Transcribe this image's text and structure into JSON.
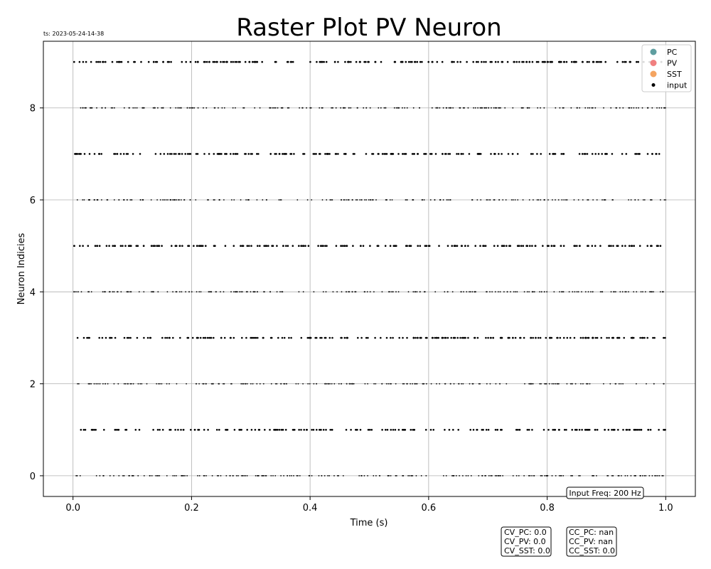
{
  "chart_data": {
    "type": "scatter",
    "title": "Raster Plot PV Neuron",
    "timestamp": "ts: 2023-05-24-14-38",
    "xlabel": "Time (s)",
    "ylabel": "Neuron Indicies",
    "xlim": [
      -0.05,
      1.05
    ],
    "ylim": [
      -0.45,
      9.45
    ],
    "x_ticks": [
      0.0,
      0.2,
      0.4,
      0.6,
      0.8,
      1.0
    ],
    "x_tick_labels": [
      "0.0",
      "0.2",
      "0.4",
      "0.6",
      "0.8",
      "1.0"
    ],
    "y_ticks": [
      0,
      2,
      4,
      6,
      8
    ],
    "y_tick_labels": [
      "0",
      "2",
      "4",
      "6",
      "8"
    ],
    "grid": true,
    "legend_position": "top-right",
    "legend": [
      {
        "name": "PC",
        "color": "#5f9ea0",
        "marker": "circle"
      },
      {
        "name": "PV",
        "color": "#f08080",
        "marker": "circle"
      },
      {
        "name": "SST",
        "color": "#f4a460",
        "marker": "circle"
      },
      {
        "name": "input",
        "color": "#000000",
        "marker": "dot"
      }
    ],
    "series": [
      {
        "name": "input",
        "color": "#000000",
        "neuron_indices": [
          0,
          1,
          2,
          3,
          4,
          5,
          6,
          7,
          8,
          9
        ],
        "x_range": [
          0.0,
          1.0
        ],
        "input_rate_hz": 200
      }
    ],
    "annotations": {
      "input_freq": "Input Freq: 200 Hz",
      "cv_lines": [
        "CV_PC: 0.0",
        "CV_PV: 0.0",
        "CV_SST: 0.0"
      ],
      "cc_lines": [
        "CC_PC: nan",
        "CC_PV: nan",
        "CC_SST: 0.0"
      ]
    }
  }
}
